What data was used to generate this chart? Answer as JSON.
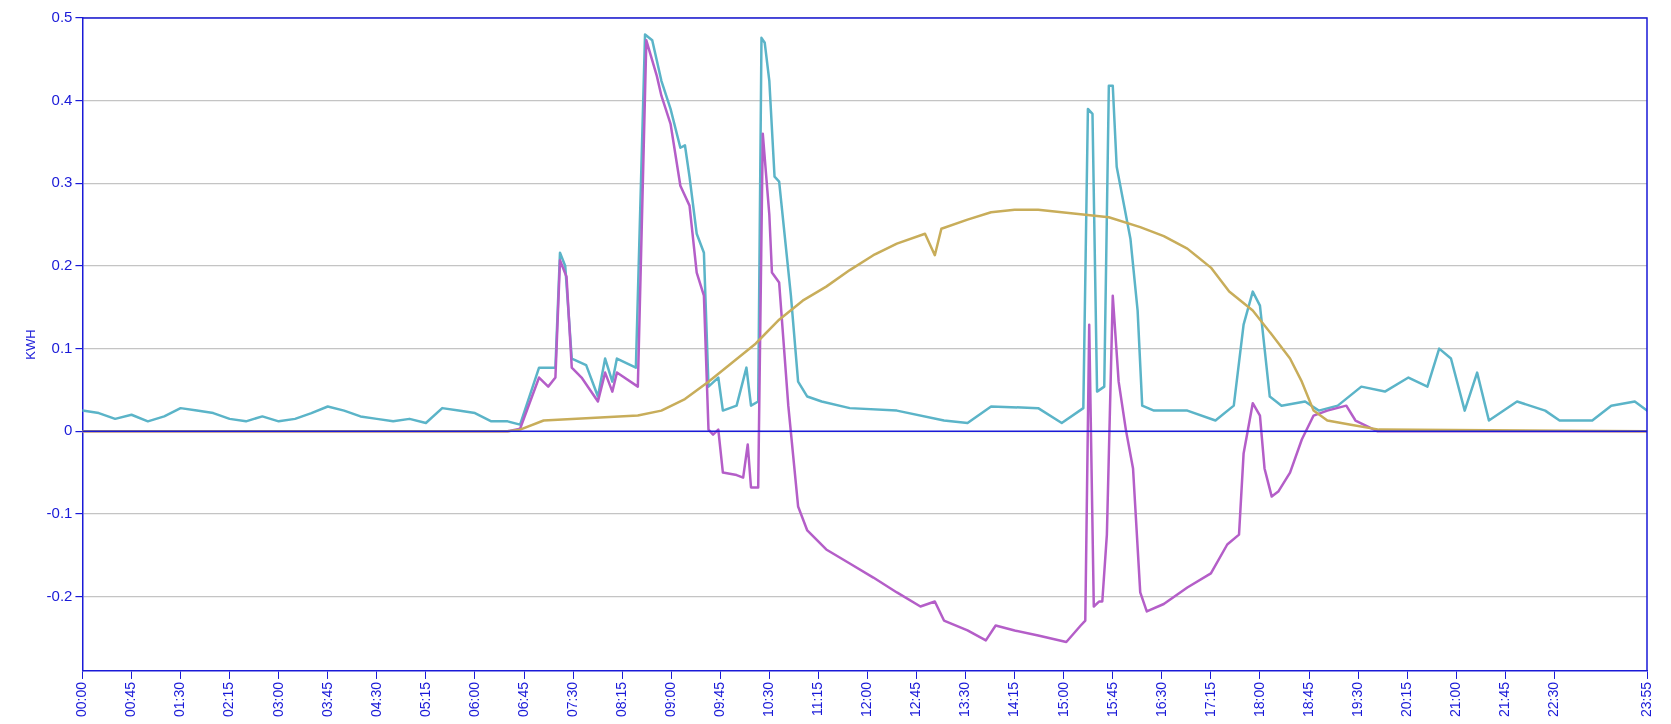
{
  "chart_data": {
    "type": "line",
    "ylabel": "KWH",
    "xlim": [
      0,
      23.9167
    ],
    "ylim": [
      -0.29,
      0.5
    ],
    "xticks": [
      {
        "value": 0,
        "label": "00:00"
      },
      {
        "value": 0.75,
        "label": "00:45"
      },
      {
        "value": 1.5,
        "label": "01:30"
      },
      {
        "value": 2.25,
        "label": "02:15"
      },
      {
        "value": 3,
        "label": "03:00"
      },
      {
        "value": 3.75,
        "label": "03:45"
      },
      {
        "value": 4.5,
        "label": "04:30"
      },
      {
        "value": 5.25,
        "label": "05:15"
      },
      {
        "value": 6,
        "label": "06:00"
      },
      {
        "value": 6.75,
        "label": "06:45"
      },
      {
        "value": 7.5,
        "label": "07:30"
      },
      {
        "value": 8.25,
        "label": "08:15"
      },
      {
        "value": 9,
        "label": "09:00"
      },
      {
        "value": 9.75,
        "label": "09:45"
      },
      {
        "value": 10.5,
        "label": "10:30"
      },
      {
        "value": 11.25,
        "label": "11:15"
      },
      {
        "value": 12,
        "label": "12:00"
      },
      {
        "value": 12.75,
        "label": "12:45"
      },
      {
        "value": 13.5,
        "label": "13:30"
      },
      {
        "value": 14.25,
        "label": "14:15"
      },
      {
        "value": 15,
        "label": "15:00"
      },
      {
        "value": 15.75,
        "label": "15:45"
      },
      {
        "value": 16.5,
        "label": "16:30"
      },
      {
        "value": 17.25,
        "label": "17:15"
      },
      {
        "value": 18,
        "label": "18:00"
      },
      {
        "value": 18.75,
        "label": "18:45"
      },
      {
        "value": 19.5,
        "label": "19:30"
      },
      {
        "value": 20.25,
        "label": "20:15"
      },
      {
        "value": 21,
        "label": "21:00"
      },
      {
        "value": 21.75,
        "label": "21:45"
      },
      {
        "value": 22.5,
        "label": "22:30"
      },
      {
        "value": 23.9167,
        "label": "23:55"
      }
    ],
    "yticks": [
      -0.2,
      -0.1,
      0,
      0.1,
      0.2,
      0.3,
      0.4,
      0.5
    ],
    "grid": "y",
    "legend": false,
    "marker": "none",
    "line_style": "solid",
    "ref_lines": [
      {
        "axis": "y",
        "value": 0,
        "color": "#1a1ad8"
      }
    ],
    "series": [
      {
        "color": "#c8ad5a",
        "x": [
          0,
          6.5,
          6.69,
          7.05,
          7.77,
          8.49,
          8.85,
          9.21,
          9.57,
          9.93,
          10.29,
          10.65,
          11.01,
          11.37,
          11.73,
          12.09,
          12.45,
          12.88,
          13.03,
          13.13,
          13.53,
          13.89,
          14.25,
          14.61,
          14.97,
          15.69,
          16.17,
          16.53,
          16.89,
          17.25,
          17.53,
          17.89,
          18.18,
          18.46,
          18.64,
          18.82,
          19.03,
          19.39,
          19.82,
          23.9167
        ],
        "values": [
          0,
          0,
          0.002,
          0.013,
          0.016,
          0.019,
          0.025,
          0.039,
          0.06,
          0.083,
          0.106,
          0.135,
          0.158,
          0.175,
          0.195,
          0.213,
          0.227,
          0.239,
          0.213,
          0.245,
          0.256,
          0.265,
          0.268,
          0.268,
          0.265,
          0.259,
          0.247,
          0.236,
          0.221,
          0.198,
          0.169,
          0.146,
          0.117,
          0.088,
          0.06,
          0.025,
          0.013,
          0.008,
          0.002,
          0
        ]
      },
      {
        "color": "#b45ec8",
        "x": [
          0,
          6.5,
          6.69,
          6.98,
          7.12,
          7.23,
          7.3,
          7.4,
          7.48,
          7.63,
          7.88,
          7.99,
          8.1,
          8.17,
          8.49,
          8.62,
          8.78,
          8.85,
          8.99,
          9.14,
          9.28,
          9.39,
          9.5,
          9.57,
          9.64,
          9.72,
          9.79,
          10.0,
          10.1,
          10.17,
          10.22,
          10.33,
          10.4,
          10.5,
          10.54,
          10.65,
          10.79,
          10.94,
          11.08,
          11.37,
          11.73,
          12.09,
          12.45,
          12.81,
          13.03,
          13.17,
          13.53,
          13.81,
          13.96,
          14.25,
          14.61,
          15.04,
          15.26,
          15.33,
          15.39,
          15.46,
          15.54,
          15.59,
          15.66,
          15.75,
          15.84,
          15.95,
          16.06,
          16.17,
          16.27,
          16.53,
          16.89,
          17.25,
          17.5,
          17.68,
          17.75,
          17.89,
          18.0,
          18.07,
          18.18,
          18.28,
          18.46,
          18.64,
          18.82,
          19.03,
          19.32,
          19.46,
          19.8,
          23.9167
        ],
        "values": [
          0,
          0,
          0.003,
          0.065,
          0.054,
          0.065,
          0.207,
          0.187,
          0.077,
          0.065,
          0.036,
          0.071,
          0.048,
          0.071,
          0.054,
          0.473,
          0.43,
          0.406,
          0.372,
          0.297,
          0.273,
          0.192,
          0.164,
          0.002,
          -0.004,
          0.002,
          -0.05,
          -0.053,
          -0.056,
          -0.016,
          -0.068,
          -0.068,
          0.36,
          0.262,
          0.192,
          0.18,
          0.031,
          -0.091,
          -0.12,
          -0.143,
          -0.16,
          -0.177,
          -0.195,
          -0.212,
          -0.206,
          -0.229,
          -0.241,
          -0.253,
          -0.235,
          -0.241,
          -0.247,
          -0.255,
          -0.235,
          -0.229,
          0.129,
          -0.212,
          -0.206,
          -0.206,
          -0.125,
          0.164,
          0.06,
          0.002,
          -0.045,
          -0.195,
          -0.218,
          -0.209,
          -0.189,
          -0.172,
          -0.137,
          -0.125,
          -0.027,
          0.034,
          0.019,
          -0.045,
          -0.079,
          -0.073,
          -0.05,
          -0.01,
          0.019,
          0.025,
          0.031,
          0.013,
          0,
          0
        ]
      },
      {
        "color": "#5bb4c8",
        "x": [
          0,
          0.25,
          0.5,
          0.75,
          1,
          1.25,
          1.5,
          1.75,
          2,
          2.25,
          2.5,
          2.75,
          3,
          3.25,
          3.5,
          3.75,
          4,
          4.25,
          4.5,
          4.75,
          5,
          5.25,
          5.5,
          5.75,
          6,
          6.25,
          6.5,
          6.69,
          6.98,
          7.23,
          7.3,
          7.38,
          7.48,
          7.7,
          7.88,
          7.99,
          8.1,
          8.17,
          8.46,
          8.6,
          8.71,
          8.85,
          8.99,
          9.14,
          9.21,
          9.28,
          9.39,
          9.5,
          9.57,
          9.72,
          9.79,
          10.0,
          10.15,
          10.22,
          10.33,
          10.38,
          10.43,
          10.5,
          10.58,
          10.65,
          10.83,
          10.94,
          11.08,
          11.3,
          11.73,
          12.45,
          13.17,
          13.53,
          13.89,
          14.61,
          14.97,
          15.3,
          15.37,
          15.44,
          15.51,
          15.62,
          15.69,
          15.75,
          15.81,
          16.02,
          16.13,
          16.2,
          16.38,
          16.89,
          17.32,
          17.6,
          17.75,
          17.89,
          18.0,
          18.15,
          18.33,
          18.69,
          18.9,
          19.19,
          19.55,
          19.91,
          20.27,
          20.56,
          20.74,
          20.92,
          21.13,
          21.32,
          21.5,
          21.93,
          22.36,
          22.58,
          23.08,
          23.37,
          23.73,
          23.9167
        ],
        "values": [
          0.025,
          0.022,
          0.015,
          0.02,
          0.012,
          0.018,
          0.028,
          0.025,
          0.022,
          0.015,
          0.012,
          0.018,
          0.012,
          0.015,
          0.022,
          0.03,
          0.025,
          0.018,
          0.015,
          0.012,
          0.015,
          0.01,
          0.028,
          0.025,
          0.022,
          0.012,
          0.012,
          0.008,
          0.077,
          0.077,
          0.216,
          0.2,
          0.088,
          0.08,
          0.042,
          0.088,
          0.06,
          0.088,
          0.077,
          0.48,
          0.473,
          0.424,
          0.39,
          0.343,
          0.346,
          0.308,
          0.239,
          0.216,
          0.054,
          0.065,
          0.025,
          0.031,
          0.077,
          0.031,
          0.036,
          0.476,
          0.47,
          0.424,
          0.308,
          0.302,
          0.164,
          0.06,
          0.042,
          0.036,
          0.028,
          0.025,
          0.013,
          0.01,
          0.03,
          0.028,
          0.01,
          0.028,
          0.39,
          0.384,
          0.048,
          0.054,
          0.418,
          0.418,
          0.32,
          0.233,
          0.146,
          0.031,
          0.025,
          0.025,
          0.013,
          0.031,
          0.129,
          0.169,
          0.152,
          0.042,
          0.031,
          0.036,
          0.025,
          0.031,
          0.054,
          0.048,
          0.065,
          0.054,
          0.1,
          0.088,
          0.025,
          0.071,
          0.013,
          0.036,
          0.025,
          0.013,
          0.013,
          0.031,
          0.036,
          0.025
        ]
      }
    ]
  }
}
